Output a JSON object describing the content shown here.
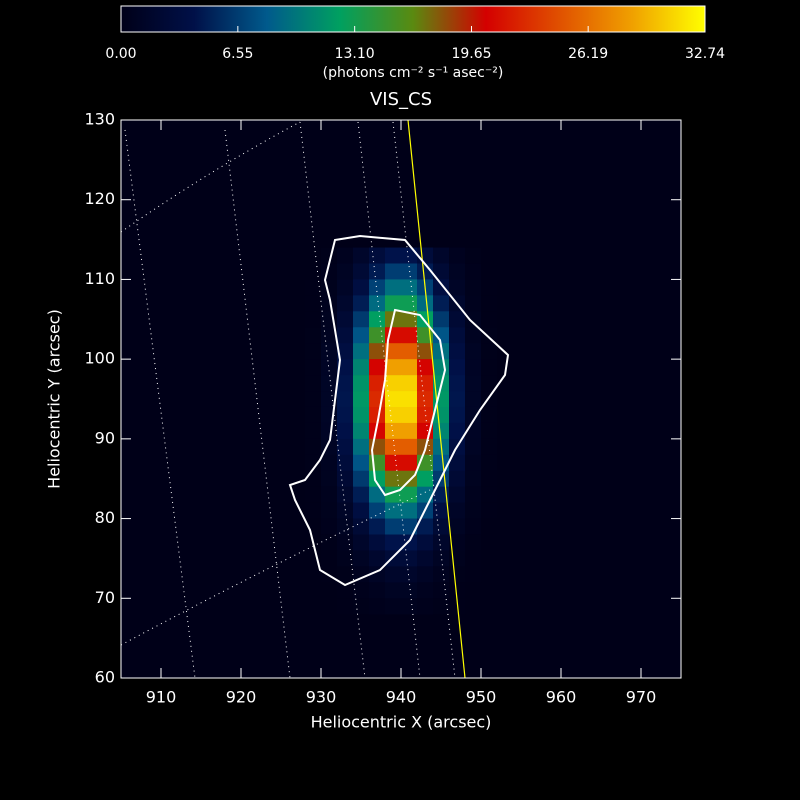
{
  "chart_data": {
    "type": "heatmap",
    "title": "VIS_CS",
    "x_label": "Heliocentric X (arcsec)",
    "y_label": "Heliocentric Y (arcsec)",
    "colorbar_label": "(photons cm⁻² s⁻¹ asec⁻²)",
    "xlim": [
      905,
      975
    ],
    "ylim": [
      60,
      130
    ],
    "xticks": [
      910,
      920,
      930,
      940,
      950,
      960,
      970
    ],
    "yticks": [
      60,
      70,
      80,
      90,
      100,
      110,
      120,
      130
    ],
    "clim": [
      0,
      32.74
    ],
    "colorbar_ticks": [
      {
        "value": 0,
        "label": "0.00"
      },
      {
        "value": 6.55,
        "label": "6.55"
      },
      {
        "value": 13.1,
        "label": "13.10"
      },
      {
        "value": 19.65,
        "label": "19.65"
      },
      {
        "value": 26.19,
        "label": "26.19"
      },
      {
        "value": 32.74,
        "label": "32.74"
      }
    ],
    "colormap": [
      "#000018",
      "#001048",
      "#005a8c",
      "#00a060",
      "#5a8a10",
      "#d40000",
      "#e05000",
      "#f0a000",
      "#ffff00"
    ],
    "x": [
      929,
      931,
      933,
      935,
      937,
      939,
      941,
      943,
      945,
      947,
      949,
      951
    ],
    "y": [
      113,
      111,
      109,
      107,
      105,
      103,
      101,
      99,
      97,
      95,
      93,
      91,
      89,
      87,
      85,
      83,
      81,
      79,
      77,
      75,
      73,
      71,
      69
    ],
    "z": [
      [
        0.0,
        0.2,
        0.6,
        1.6,
        3.0,
        4.2,
        4.2,
        3.0,
        1.6,
        0.6,
        0.2,
        0.0
      ],
      [
        0.0,
        0.3,
        0.9,
        2.5,
        4.7,
        6.6,
        6.6,
        4.7,
        2.5,
        0.9,
        0.3,
        0.0
      ],
      [
        0.1,
        0.4,
        1.3,
        3.5,
        6.8,
        9.4,
        9.4,
        6.8,
        3.5,
        1.3,
        0.4,
        0.1
      ],
      [
        0.1,
        0.5,
        1.8,
        4.8,
        9.2,
        12.9,
        12.9,
        9.2,
        4.8,
        1.8,
        0.5,
        0.1
      ],
      [
        0.1,
        0.7,
        2.4,
        6.4,
        12.2,
        17.0,
        17.0,
        12.2,
        6.4,
        2.4,
        0.7,
        0.1
      ],
      [
        0.2,
        0.8,
        3.0,
        7.9,
        15.1,
        21.0,
        21.0,
        15.1,
        7.9,
        3.0,
        0.8,
        0.2
      ],
      [
        0.2,
        1.0,
        3.5,
        9.4,
        18.1,
        25.2,
        25.2,
        18.1,
        9.4,
        3.5,
        1.0,
        0.2
      ],
      [
        0.2,
        1.1,
        4.0,
        10.7,
        20.6,
        28.6,
        28.6,
        20.6,
        10.7,
        4.0,
        1.1,
        0.2
      ],
      [
        0.2,
        1.2,
        4.3,
        11.5,
        22.1,
        30.7,
        30.7,
        22.1,
        11.5,
        4.3,
        1.2,
        0.2
      ],
      [
        0.2,
        1.2,
        4.4,
        11.8,
        22.6,
        31.4,
        31.4,
        22.6,
        11.8,
        4.4,
        1.2,
        0.2
      ],
      [
        0.2,
        1.2,
        4.3,
        11.5,
        22.1,
        30.7,
        30.7,
        22.1,
        11.5,
        4.3,
        1.2,
        0.2
      ],
      [
        0.2,
        1.1,
        4.0,
        10.7,
        20.6,
        28.6,
        28.6,
        20.6,
        10.7,
        4.0,
        1.1,
        0.2
      ],
      [
        0.2,
        1.0,
        3.5,
        9.4,
        18.1,
        25.2,
        25.2,
        18.1,
        9.4,
        3.5,
        1.0,
        0.2
      ],
      [
        0.2,
        0.8,
        3.0,
        7.9,
        15.1,
        21.0,
        21.0,
        15.1,
        7.9,
        3.0,
        0.8,
        0.2
      ],
      [
        0.1,
        0.7,
        2.4,
        6.4,
        12.2,
        17.0,
        17.0,
        12.2,
        6.4,
        2.4,
        0.7,
        0.1
      ],
      [
        0.1,
        0.5,
        1.8,
        4.8,
        9.2,
        12.9,
        12.9,
        9.2,
        4.8,
        1.8,
        0.5,
        0.1
      ],
      [
        0.1,
        0.4,
        1.3,
        3.5,
        6.8,
        9.4,
        9.4,
        6.8,
        3.5,
        1.3,
        0.4,
        0.1
      ],
      [
        0.0,
        0.3,
        0.9,
        2.5,
        4.7,
        6.6,
        6.6,
        4.7,
        2.5,
        0.9,
        0.3,
        0.0
      ],
      [
        0.0,
        0.2,
        0.6,
        1.6,
        3.0,
        4.2,
        4.2,
        3.0,
        1.6,
        0.6,
        0.2,
        0.0
      ],
      [
        0.0,
        0.1,
        0.4,
        1.0,
        1.9,
        2.7,
        2.7,
        1.9,
        1.0,
        0.4,
        0.1,
        0.0
      ],
      [
        0.0,
        0.1,
        0.2,
        0.6,
        1.1,
        1.6,
        1.6,
        1.1,
        0.6,
        0.2,
        0.1,
        0.0
      ],
      [
        0.0,
        0.0,
        0.1,
        0.3,
        0.6,
        0.9,
        0.9,
        0.6,
        0.3,
        0.1,
        0.0,
        0.0
      ],
      [
        0.0,
        0.0,
        0.1,
        0.2,
        0.3,
        0.5,
        0.5,
        0.3,
        0.2,
        0.1,
        0.0,
        0.0
      ]
    ]
  }
}
